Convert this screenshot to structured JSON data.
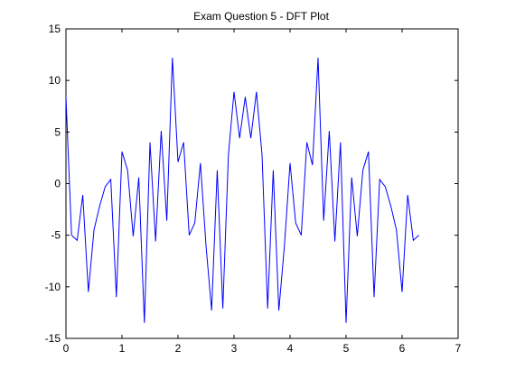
{
  "chart_data": {
    "type": "line",
    "title": "Exam Question 5 - DFT Plot",
    "xlabel": "",
    "ylabel": "",
    "xlim": [
      0,
      7
    ],
    "ylim": [
      -15,
      15
    ],
    "xticks": [
      0,
      1,
      2,
      3,
      4,
      5,
      6,
      7
    ],
    "yticks": [
      -15,
      -10,
      -5,
      0,
      5,
      10,
      15
    ],
    "grid": false,
    "line_color": "#0000ff",
    "series": [
      {
        "x": [
          0,
          0.1,
          0.2,
          0.3,
          0.4,
          0.5,
          0.6,
          0.7,
          0.8,
          0.9,
          1.0,
          1.1,
          1.2,
          1.3,
          1.4,
          1.5,
          1.6,
          1.7,
          1.8,
          1.9,
          2.0,
          2.1,
          2.2,
          2.3,
          2.4,
          2.5,
          2.6,
          2.7,
          2.8,
          2.9,
          3.0,
          3.1,
          3.2,
          3.3,
          3.4,
          3.5,
          3.6,
          3.7,
          3.8,
          3.9,
          4.0,
          4.1,
          4.2,
          4.3,
          4.4,
          4.5,
          4.6,
          4.7,
          4.8,
          4.9,
          5.0,
          5.1,
          5.2,
          5.3,
          5.4,
          5.5,
          5.6,
          5.7,
          5.8,
          5.9,
          6.0,
          6.1,
          6.2,
          6.3
        ],
        "values": [
          8.4,
          -5.0,
          -5.5,
          -1.1,
          -10.5,
          -4.5,
          -2.2,
          -0.3,
          0.4,
          -11.0,
          3.1,
          1.3,
          -5.1,
          0.6,
          -13.5,
          4.0,
          -5.6,
          5.1,
          -3.6,
          12.2,
          2.1,
          4.0,
          -5.0,
          -3.8,
          2.0,
          -6.0,
          -12.3,
          1.3,
          -12.1,
          2.8,
          8.9,
          4.4,
          8.4,
          4.4,
          8.9,
          2.8,
          -12.1,
          1.3,
          -12.3,
          -6.0,
          2.0,
          -3.8,
          -5.0,
          4.0,
          1.8,
          12.2,
          -3.6,
          5.1,
          -5.6,
          4.0,
          -13.5,
          0.6,
          -5.1,
          1.3,
          3.1,
          -11.0,
          0.4,
          -0.3,
          -2.2,
          -4.5,
          -10.5,
          -1.1,
          -5.5,
          -5.0
        ]
      }
    ]
  }
}
